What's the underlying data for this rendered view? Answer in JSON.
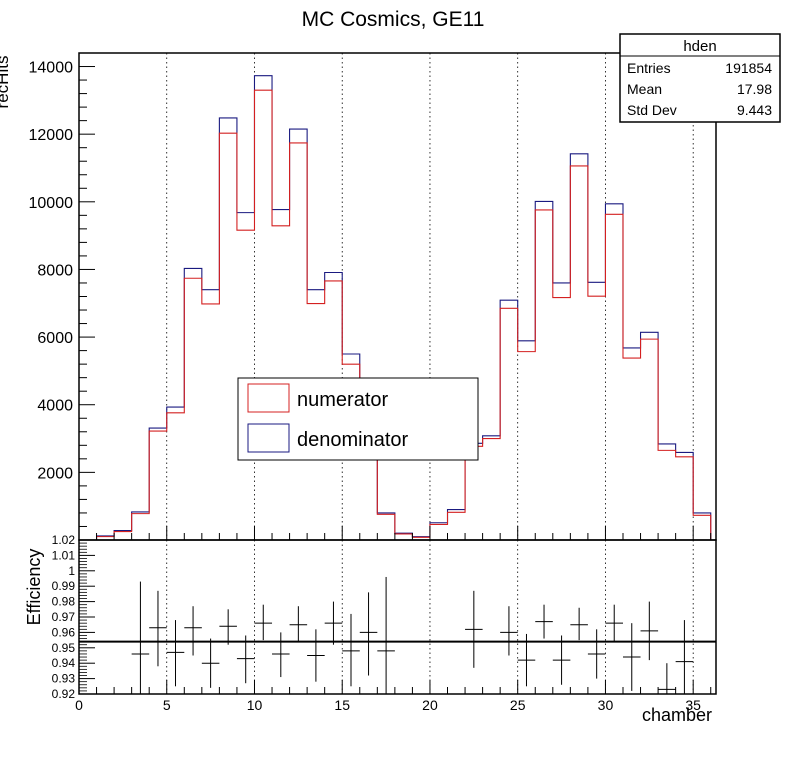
{
  "title": "MC Cosmics, GE11",
  "stats": {
    "name": "hden",
    "rows": [
      {
        "label": "Entries",
        "value": "191854"
      },
      {
        "label": "Mean",
        "value": "17.98"
      },
      {
        "label": "Std Dev",
        "value": "9.443"
      }
    ]
  },
  "legend": [
    {
      "label": "numerator",
      "color": "#d42020"
    },
    {
      "label": "denominator",
      "color": "#1a1a80"
    }
  ],
  "chart_data": [
    {
      "type": "histogram",
      "title": "MC Cosmics, GE11",
      "ylabel": "recHits",
      "xlim": [
        0,
        36.3
      ],
      "ylim": [
        0,
        14400
      ],
      "x_bin_centers": [
        1.5,
        2.5,
        3.5,
        4.5,
        5.5,
        6.5,
        7.5,
        8.5,
        9.5,
        10.5,
        11.5,
        12.5,
        13.5,
        14.5,
        15.5,
        16.5,
        17.5,
        18.5,
        19.5,
        20.5,
        21.5,
        22.5,
        23.5,
        24.5,
        25.5,
        26.5,
        27.5,
        28.5,
        29.5,
        30.5,
        31.5,
        32.5,
        33.5,
        34.5,
        35.5
      ],
      "yticks": [
        2000,
        4000,
        6000,
        8000,
        10000,
        12000,
        14000
      ],
      "series": [
        {
          "name": "numerator",
          "color": "#d42020",
          "values": [
            100,
            250,
            780,
            3220,
            3760,
            7740,
            6980,
            12030,
            9160,
            13300,
            9290,
            11740,
            6990,
            7660,
            5200,
            3500,
            760,
            180,
            80,
            460,
            820,
            2770,
            3000,
            6850,
            5570,
            9760,
            7170,
            11060,
            7210,
            9630,
            5380,
            5940,
            2650,
            2460,
            730
          ]
        },
        {
          "name": "denominator",
          "color": "#1a1a80",
          "values": [
            120,
            280,
            830,
            3310,
            3930,
            8030,
            7400,
            12480,
            9680,
            13730,
            9770,
            12150,
            7400,
            7910,
            5500,
            3700,
            800,
            200,
            100,
            510,
            900,
            2860,
            3080,
            7090,
            5890,
            10010,
            7600,
            11420,
            7620,
            9940,
            5680,
            6140,
            2840,
            2590,
            800
          ]
        }
      ],
      "grid": "vertical"
    },
    {
      "type": "scatter",
      "ylabel": "Efficiency",
      "xlabel": "chamber",
      "xlim": [
        0,
        36.3
      ],
      "ylim": [
        0.92,
        1.02
      ],
      "xticks": [
        0,
        5,
        10,
        15,
        20,
        25,
        30,
        35
      ],
      "yticks": [
        0.92,
        0.93,
        0.94,
        0.95,
        0.96,
        0.97,
        0.98,
        0.99,
        1,
        1.01,
        1.02
      ],
      "fit_line": 0.954,
      "points": [
        {
          "x": 3.5,
          "y": 0.946,
          "ylo": 0.915,
          "yhi": 0.993
        },
        {
          "x": 4.5,
          "y": 0.963,
          "ylo": 0.938,
          "yhi": 0.987
        },
        {
          "x": 5.5,
          "y": 0.947,
          "ylo": 0.925,
          "yhi": 0.968
        },
        {
          "x": 6.5,
          "y": 0.963,
          "ylo": 0.945,
          "yhi": 0.977
        },
        {
          "x": 7.5,
          "y": 0.94,
          "ylo": 0.924,
          "yhi": 0.956
        },
        {
          "x": 8.5,
          "y": 0.964,
          "ylo": 0.952,
          "yhi": 0.975
        },
        {
          "x": 9.5,
          "y": 0.943,
          "ylo": 0.927,
          "yhi": 0.958
        },
        {
          "x": 10.5,
          "y": 0.966,
          "ylo": 0.955,
          "yhi": 0.978
        },
        {
          "x": 11.5,
          "y": 0.946,
          "ylo": 0.931,
          "yhi": 0.96
        },
        {
          "x": 12.5,
          "y": 0.965,
          "ylo": 0.954,
          "yhi": 0.977
        },
        {
          "x": 13.5,
          "y": 0.945,
          "ylo": 0.928,
          "yhi": 0.962
        },
        {
          "x": 14.5,
          "y": 0.966,
          "ylo": 0.952,
          "yhi": 0.98
        },
        {
          "x": 15.5,
          "y": 0.948,
          "ylo": 0.925,
          "yhi": 0.972
        },
        {
          "x": 16.5,
          "y": 0.96,
          "ylo": 0.932,
          "yhi": 0.986
        },
        {
          "x": 17.5,
          "y": 0.948,
          "ylo": 0.905,
          "yhi": 0.996
        },
        {
          "x": 22.5,
          "y": 0.962,
          "ylo": 0.937,
          "yhi": 0.987
        },
        {
          "x": 24.5,
          "y": 0.96,
          "ylo": 0.945,
          "yhi": 0.977
        },
        {
          "x": 25.5,
          "y": 0.942,
          "ylo": 0.925,
          "yhi": 0.959
        },
        {
          "x": 26.5,
          "y": 0.967,
          "ylo": 0.956,
          "yhi": 0.978
        },
        {
          "x": 27.5,
          "y": 0.942,
          "ylo": 0.926,
          "yhi": 0.958
        },
        {
          "x": 28.5,
          "y": 0.965,
          "ylo": 0.955,
          "yhi": 0.976
        },
        {
          "x": 29.5,
          "y": 0.946,
          "ylo": 0.93,
          "yhi": 0.962
        },
        {
          "x": 30.5,
          "y": 0.966,
          "ylo": 0.954,
          "yhi": 0.978
        },
        {
          "x": 31.5,
          "y": 0.944,
          "ylo": 0.922,
          "yhi": 0.966
        },
        {
          "x": 32.5,
          "y": 0.961,
          "ylo": 0.942,
          "yhi": 0.98
        },
        {
          "x": 33.5,
          "y": 0.923,
          "ylo": 0.906,
          "yhi": 0.94
        },
        {
          "x": 34.5,
          "y": 0.941,
          "ylo": 0.915,
          "yhi": 0.968
        }
      ],
      "grid": "vertical"
    }
  ]
}
